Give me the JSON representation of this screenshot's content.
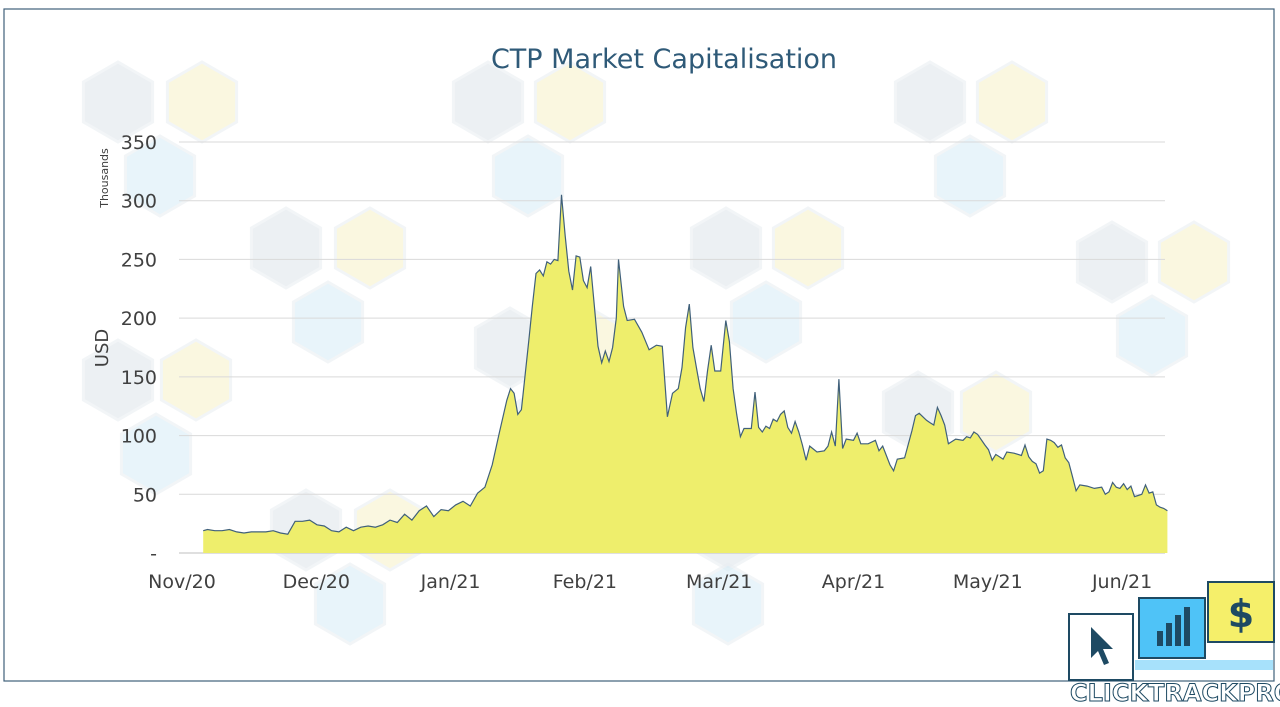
{
  "chart_data": {
    "type": "area",
    "title": "CTP Market Capitalisation",
    "xlabel": "",
    "ylabel": "USD",
    "y_unit_label": "Thousands",
    "ylim": [
      0,
      350
    ],
    "y_ticks": [
      0,
      50,
      100,
      150,
      200,
      250,
      300,
      350
    ],
    "y_tick_labels": [
      "-",
      "50",
      "100",
      "150",
      "200",
      "250",
      "300",
      "350"
    ],
    "x_tick_labels": [
      "Nov/20",
      "Dec/20",
      "Jan/21",
      "Feb/21",
      "Mar/21",
      "Apr/21",
      "May/21",
      "Jun/21"
    ],
    "x_tick_positions": [
      0,
      1,
      2,
      3,
      4,
      5,
      6,
      7
    ],
    "grid": true,
    "legend": "none",
    "fill_color": "#eeee6c",
    "line_color": "#40607a",
    "series": [
      {
        "points": [
          [
            0.29,
            0
          ],
          [
            0.29,
            19
          ],
          [
            0.35,
            20
          ],
          [
            0.45,
            19
          ],
          [
            0.55,
            19
          ],
          [
            0.65,
            20
          ],
          [
            0.75,
            18
          ],
          [
            0.85,
            17
          ],
          [
            0.95,
            18
          ],
          [
            1.05,
            18
          ],
          [
            1.15,
            18
          ],
          [
            1.25,
            19
          ],
          [
            1.35,
            17
          ],
          [
            1.45,
            16
          ],
          [
            1.55,
            27
          ],
          [
            1.65,
            27
          ],
          [
            1.75,
            28
          ],
          [
            1.85,
            24
          ],
          [
            1.95,
            23
          ],
          [
            2.05,
            19
          ],
          [
            2.15,
            18
          ],
          [
            2.25,
            22
          ],
          [
            2.35,
            19
          ],
          [
            2.45,
            22
          ],
          [
            2.55,
            23
          ],
          [
            2.65,
            22
          ],
          [
            2.75,
            24
          ],
          [
            2.85,
            28
          ],
          [
            2.95,
            26
          ],
          [
            3.05,
            33
          ],
          [
            3.15,
            28
          ],
          [
            3.25,
            36
          ],
          [
            3.35,
            40
          ],
          [
            3.45,
            31
          ],
          [
            3.55,
            37
          ],
          [
            3.65,
            36
          ],
          [
            3.75,
            41
          ],
          [
            3.85,
            44
          ],
          [
            3.95,
            40
          ],
          [
            4.05,
            51
          ],
          [
            4.15,
            56
          ],
          [
            4.25,
            75
          ],
          [
            4.35,
            103
          ],
          [
            4.45,
            130
          ],
          [
            4.5,
            140
          ],
          [
            4.55,
            136
          ],
          [
            4.6,
            118
          ],
          [
            4.65,
            122
          ],
          [
            4.75,
            180
          ],
          [
            4.8,
            210
          ],
          [
            4.85,
            238
          ],
          [
            4.9,
            241
          ],
          [
            4.95,
            236
          ],
          [
            5.0,
            248
          ],
          [
            5.05,
            246
          ],
          [
            5.1,
            250
          ],
          [
            5.15,
            249
          ],
          [
            5.2,
            305
          ],
          [
            5.25,
            270
          ],
          [
            5.3,
            240
          ],
          [
            5.35,
            224
          ],
          [
            5.4,
            253
          ],
          [
            5.45,
            252
          ],
          [
            5.5,
            232
          ],
          [
            5.55,
            226
          ],
          [
            5.6,
            244
          ],
          [
            5.65,
            210
          ],
          [
            5.7,
            176
          ],
          [
            5.75,
            162
          ],
          [
            5.8,
            172
          ],
          [
            5.85,
            163
          ],
          [
            5.9,
            175
          ],
          [
            5.95,
            200
          ],
          [
            5.98,
            250
          ],
          [
            6.05,
            210
          ],
          [
            6.1,
            198
          ],
          [
            6.2,
            199
          ],
          [
            6.3,
            188
          ],
          [
            6.4,
            173
          ],
          [
            6.5,
            177
          ],
          [
            6.58,
            176
          ],
          [
            6.65,
            116
          ],
          [
            6.72,
            136
          ],
          [
            6.8,
            140
          ],
          [
            6.85,
            158
          ],
          [
            6.9,
            192
          ],
          [
            6.95,
            212
          ],
          [
            7.0,
            175
          ],
          [
            7.05,
            157
          ],
          [
            7.1,
            140
          ],
          [
            7.15,
            129
          ],
          [
            7.2,
            155
          ],
          [
            7.25,
            177
          ],
          [
            7.3,
            155
          ],
          [
            7.38,
            155
          ],
          [
            7.45,
            198
          ],
          [
            7.5,
            180
          ],
          [
            7.55,
            140
          ],
          [
            7.6,
            118
          ],
          [
            7.65,
            99
          ],
          [
            7.7,
            106
          ],
          [
            7.8,
            106
          ],
          [
            7.85,
            137
          ],
          [
            7.9,
            107
          ],
          [
            7.95,
            103
          ],
          [
            8.0,
            108
          ],
          [
            8.05,
            106
          ],
          [
            8.1,
            114
          ],
          [
            8.15,
            112
          ],
          [
            8.2,
            118
          ],
          [
            8.25,
            121
          ],
          [
            8.3,
            107
          ],
          [
            8.35,
            102
          ],
          [
            8.4,
            112
          ],
          [
            8.45,
            103
          ],
          [
            8.5,
            92
          ],
          [
            8.55,
            79
          ],
          [
            8.6,
            91
          ],
          [
            8.7,
            86
          ],
          [
            8.8,
            87
          ],
          [
            8.85,
            91
          ],
          [
            8.9,
            103
          ],
          [
            8.95,
            91
          ],
          [
            9.0,
            148
          ],
          [
            9.05,
            89
          ],
          [
            9.1,
            97
          ],
          [
            9.2,
            96
          ],
          [
            9.25,
            102
          ],
          [
            9.3,
            93
          ],
          [
            9.4,
            93
          ],
          [
            9.5,
            96
          ],
          [
            9.55,
            87
          ],
          [
            9.6,
            91
          ],
          [
            9.7,
            75
          ],
          [
            9.75,
            70
          ],
          [
            9.8,
            80
          ],
          [
            9.9,
            81
          ],
          [
            10.0,
            104
          ],
          [
            10.05,
            117
          ],
          [
            10.1,
            119
          ],
          [
            10.2,
            113
          ],
          [
            10.25,
            111
          ],
          [
            10.3,
            109
          ],
          [
            10.35,
            124
          ],
          [
            10.4,
            117
          ],
          [
            10.45,
            109
          ],
          [
            10.5,
            93
          ],
          [
            10.6,
            97
          ],
          [
            10.7,
            96
          ],
          [
            10.75,
            99
          ],
          [
            10.8,
            98
          ],
          [
            10.85,
            103
          ],
          [
            10.9,
            101
          ],
          [
            11.0,
            92
          ],
          [
            11.05,
            88
          ],
          [
            11.1,
            79
          ],
          [
            11.15,
            84
          ],
          [
            11.25,
            80
          ],
          [
            11.3,
            86
          ],
          [
            11.4,
            85
          ],
          [
            11.5,
            83
          ],
          [
            11.55,
            92
          ],
          [
            11.6,
            82
          ],
          [
            11.65,
            78
          ],
          [
            11.7,
            76
          ],
          [
            11.75,
            68
          ],
          [
            11.8,
            70
          ],
          [
            11.85,
            97
          ],
          [
            11.9,
            96
          ],
          [
            11.95,
            94
          ],
          [
            12.0,
            90
          ],
          [
            12.05,
            92
          ],
          [
            12.1,
            81
          ],
          [
            12.15,
            77
          ],
          [
            12.2,
            65
          ],
          [
            12.25,
            53
          ],
          [
            12.3,
            58
          ],
          [
            12.4,
            57
          ],
          [
            12.5,
            55
          ],
          [
            12.6,
            56
          ],
          [
            12.65,
            50
          ],
          [
            12.7,
            52
          ],
          [
            12.75,
            60
          ],
          [
            12.8,
            56
          ],
          [
            12.85,
            55
          ],
          [
            12.9,
            59
          ],
          [
            12.95,
            54
          ],
          [
            13.0,
            57
          ],
          [
            13.05,
            48
          ],
          [
            13.1,
            49
          ],
          [
            13.15,
            50
          ],
          [
            13.2,
            58
          ],
          [
            13.25,
            51
          ],
          [
            13.3,
            52
          ],
          [
            13.35,
            41
          ],
          [
            13.4,
            39
          ],
          [
            13.45,
            38
          ],
          [
            13.5,
            36
          ],
          [
            13.5,
            0
          ]
        ]
      }
    ]
  },
  "logo": {
    "wordmark_1": "CLICK",
    "wordmark_2": "TRACK",
    "wordmark_3": "PROFIT",
    "dollar_sign": "$",
    "colors": {
      "pointer": "#ffffff",
      "chart": "#4fc3f7",
      "dollar": "#f5ef6a",
      "dark": "#1e4a63"
    }
  },
  "watermark": {
    "pattern": "hexagon-icons",
    "opacity": 0.18
  }
}
